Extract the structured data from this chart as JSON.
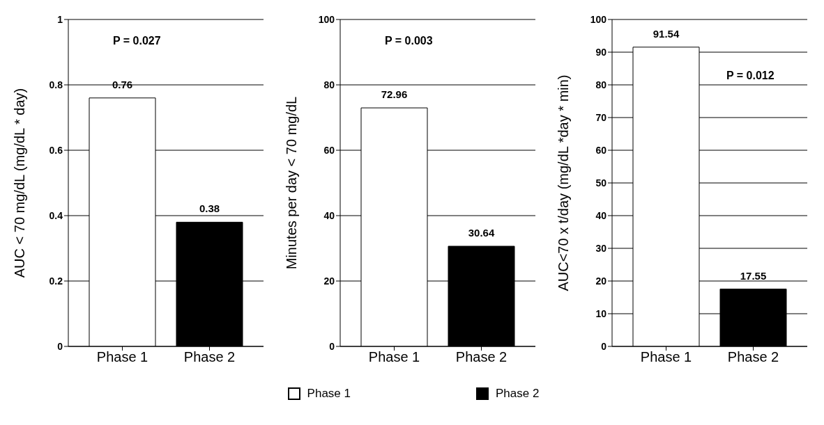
{
  "chart_data": [
    {
      "type": "bar",
      "categories": [
        "Phase 1",
        "Phase 2"
      ],
      "stacked": true,
      "ylabel": "AUC < 70 mg/dL  (mg/dL * day)",
      "ylim": [
        0,
        1
      ],
      "yticks": [
        0,
        0.2,
        0.4,
        0.6,
        0.8,
        1
      ],
      "grid": "y",
      "data_labels": true,
      "legend": "bottom",
      "annotations": [
        "P = 0.027"
      ],
      "series": [
        {
          "name": "Phase 1",
          "color": "#ffffff",
          "values": [
            0.76,
            null
          ]
        },
        {
          "name": "Phase 2",
          "color": "#000000",
          "values": [
            null,
            0.38
          ]
        }
      ]
    },
    {
      "type": "bar",
      "categories": [
        "Phase 1",
        "Phase 2"
      ],
      "stacked": true,
      "ylabel": "Minutes per day  < 70 mg/dL",
      "ylim": [
        0,
        100
      ],
      "yticks": [
        0,
        20,
        40,
        60,
        80,
        100
      ],
      "grid": "y",
      "data_labels": true,
      "annotations": [
        "P = 0.003"
      ],
      "series": [
        {
          "color": "#ffffff",
          "values": [
            72.96,
            null
          ]
        },
        {
          "color": "#000000",
          "values": [
            null,
            30.64
          ]
        }
      ]
    },
    {
      "type": "bar",
      "categories": [
        "Phase 1",
        "Phase 2"
      ],
      "stacked": true,
      "ylabel": "AUC<70 x t/day (mg/dL *day * min)",
      "ylim": [
        0,
        100
      ],
      "yticks": [
        0,
        10,
        20,
        30,
        40,
        50,
        60,
        70,
        80,
        90,
        100
      ],
      "grid": "y",
      "data_labels": true,
      "annotations": [
        "P = 0.012"
      ],
      "series": [
        {
          "color": "#ffffff",
          "values": [
            91.54,
            null
          ]
        },
        {
          "color": "#000000",
          "values": [
            null,
            17.55
          ]
        }
      ]
    }
  ]
}
